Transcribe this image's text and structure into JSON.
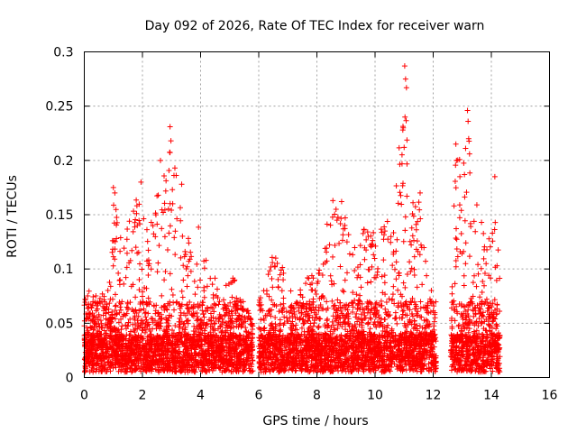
{
  "chart_data": {
    "type": "scatter",
    "title": "Day 092 of 2026, Rate Of TEC Index for receiver warn",
    "xlabel": "GPS time / hours",
    "ylabel": "ROTI / TECUs",
    "xlim": [
      0,
      16
    ],
    "ylim": [
      0,
      0.3
    ],
    "xticks": [
      0,
      2,
      4,
      6,
      8,
      10,
      12,
      14,
      16
    ],
    "yticks": [
      0,
      0.05,
      0.1,
      0.15,
      0.2,
      0.25,
      0.3
    ],
    "xtick_labels": [
      "0",
      "2",
      "4",
      "6",
      "8",
      "10",
      "12",
      "14",
      "16"
    ],
    "ytick_labels": [
      "0",
      "0.05",
      "0.1",
      "0.15",
      "0.2",
      "0.25",
      "0.3"
    ],
    "grid": true,
    "marker": "+",
    "color": "#ff0000",
    "data_segments": [
      {
        "x_start": 0.0,
        "x_end": 5.8
      },
      {
        "x_start": 6.0,
        "x_end": 12.1
      },
      {
        "x_start": 12.6,
        "x_end": 14.3
      }
    ],
    "envelope": [
      [
        0.0,
        0.08
      ],
      [
        0.3,
        0.08
      ],
      [
        0.6,
        0.08
      ],
      [
        0.9,
        0.1
      ],
      [
        1.0,
        0.175
      ],
      [
        1.3,
        0.12
      ],
      [
        1.6,
        0.15
      ],
      [
        1.9,
        0.18
      ],
      [
        2.1,
        0.14
      ],
      [
        2.4,
        0.15
      ],
      [
        2.6,
        0.2
      ],
      [
        2.8,
        0.19
      ],
      [
        2.95,
        0.23
      ],
      [
        3.2,
        0.18
      ],
      [
        3.5,
        0.13
      ],
      [
        3.8,
        0.13
      ],
      [
        3.95,
        0.15
      ],
      [
        4.2,
        0.11
      ],
      [
        4.6,
        0.09
      ],
      [
        5.0,
        0.1
      ],
      [
        5.4,
        0.08
      ],
      [
        5.8,
        0.05
      ],
      [
        6.0,
        0.07
      ],
      [
        6.3,
        0.1
      ],
      [
        6.6,
        0.12
      ],
      [
        6.9,
        0.1
      ],
      [
        7.2,
        0.07
      ],
      [
        7.6,
        0.09
      ],
      [
        8.0,
        0.1
      ],
      [
        8.2,
        0.13
      ],
      [
        8.5,
        0.16
      ],
      [
        8.8,
        0.16
      ],
      [
        9.1,
        0.14
      ],
      [
        9.4,
        0.12
      ],
      [
        9.7,
        0.15
      ],
      [
        10.0,
        0.13
      ],
      [
        10.3,
        0.14
      ],
      [
        10.6,
        0.15
      ],
      [
        10.8,
        0.2
      ],
      [
        11.0,
        0.29
      ],
      [
        11.2,
        0.17
      ],
      [
        11.5,
        0.17
      ],
      [
        11.8,
        0.1
      ],
      [
        12.1,
        0.08
      ],
      [
        12.6,
        0.08
      ],
      [
        12.8,
        0.22
      ],
      [
        13.0,
        0.19
      ],
      [
        13.2,
        0.24
      ],
      [
        13.4,
        0.17
      ],
      [
        13.6,
        0.15
      ],
      [
        13.8,
        0.14
      ],
      [
        14.0,
        0.13
      ],
      [
        14.1,
        0.185
      ],
      [
        14.3,
        0.1
      ]
    ],
    "highlight_points": [
      {
        "x": 11.02,
        "y": 0.287
      },
      {
        "x": 11.05,
        "y": 0.275
      },
      {
        "x": 11.08,
        "y": 0.267
      },
      {
        "x": 11.03,
        "y": 0.24
      },
      {
        "x": 10.97,
        "y": 0.23
      },
      {
        "x": 11.0,
        "y": 0.212
      },
      {
        "x": 13.18,
        "y": 0.246
      },
      {
        "x": 13.2,
        "y": 0.236
      },
      {
        "x": 13.22,
        "y": 0.22
      },
      {
        "x": 12.78,
        "y": 0.215
      },
      {
        "x": 12.8,
        "y": 0.2
      },
      {
        "x": 13.25,
        "y": 0.206
      },
      {
        "x": 2.95,
        "y": 0.231
      },
      {
        "x": 2.98,
        "y": 0.218
      },
      {
        "x": 2.62,
        "y": 0.2
      },
      {
        "x": 1.0,
        "y": 0.175
      },
      {
        "x": 1.05,
        "y": 0.17
      },
      {
        "x": 14.12,
        "y": 0.185
      },
      {
        "x": 11.55,
        "y": 0.17
      },
      {
        "x": 8.55,
        "y": 0.163
      },
      {
        "x": 8.85,
        "y": 0.162
      },
      {
        "x": 3.35,
        "y": 0.178
      },
      {
        "x": 1.95,
        "y": 0.18
      }
    ]
  }
}
